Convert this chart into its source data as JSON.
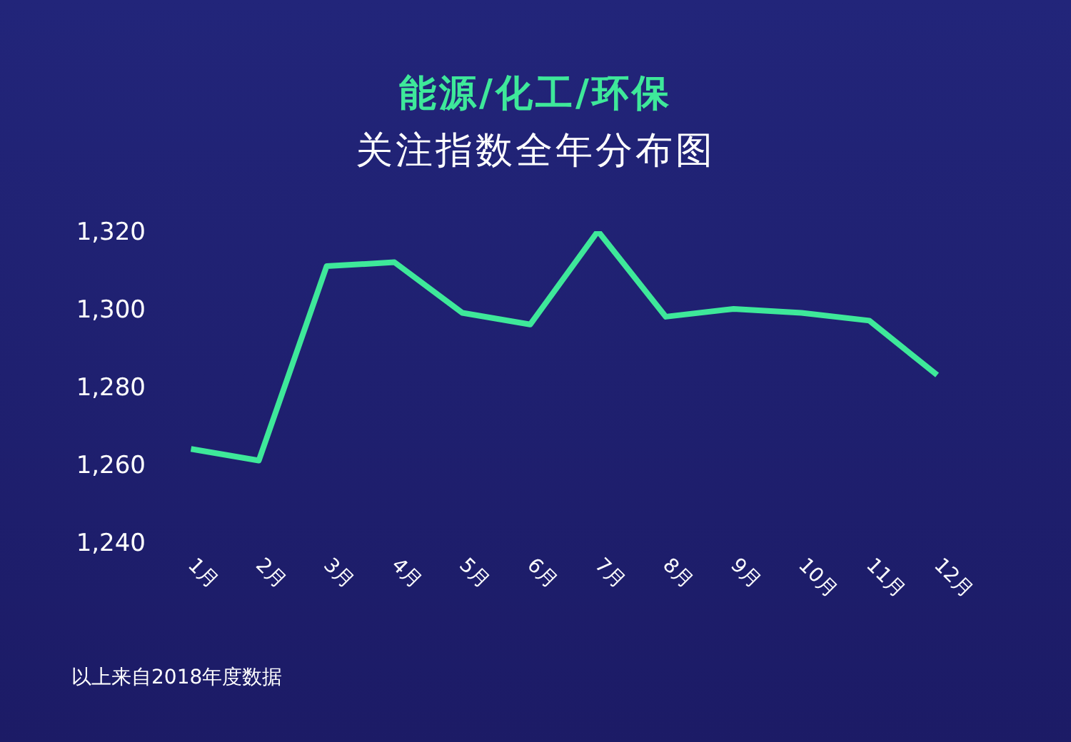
{
  "chart_data": {
    "type": "line",
    "title": "能源/化工/环保",
    "subtitle": "关注指数全年分布图",
    "categories": [
      "1月",
      "2月",
      "3月",
      "4月",
      "5月",
      "6月",
      "7月",
      "8月",
      "9月",
      "10月",
      "11月",
      "12月"
    ],
    "series": [
      {
        "color": "#3ee89a",
        "values": [
          1264,
          1261,
          1311,
          1312,
          1299,
          1296,
          1320,
          1298,
          1300,
          1299,
          1297,
          1283
        ]
      }
    ],
    "ylim": [
      1240,
      1320
    ],
    "yticks": [
      {
        "value": 1240,
        "label": "1,240"
      },
      {
        "value": 1260,
        "label": "1,260"
      },
      {
        "value": 1280,
        "label": "1,280"
      },
      {
        "value": 1300,
        "label": "1,300"
      },
      {
        "value": 1320,
        "label": "1,320"
      }
    ],
    "grid": false,
    "legend": false,
    "marker": "none",
    "line_style": "solid",
    "annotations": [
      "以上来自2018年度数据"
    ]
  }
}
